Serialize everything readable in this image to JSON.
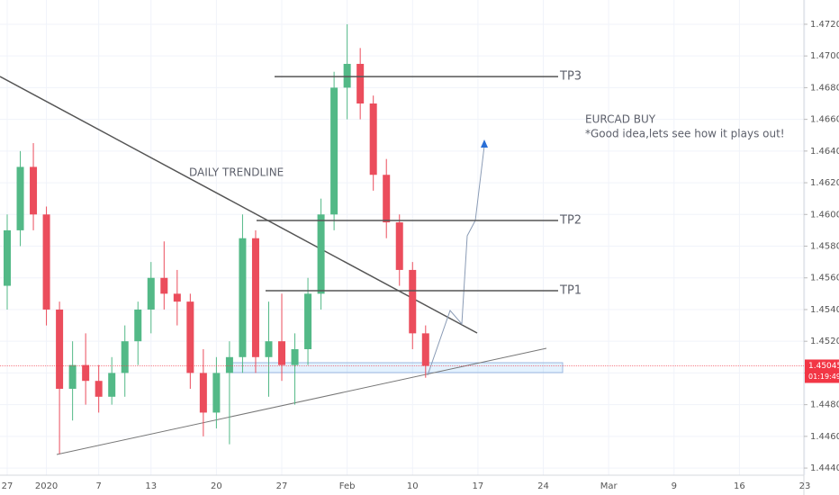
{
  "chart_data": {
    "type": "candlestick",
    "up_color": "#53b987",
    "down_color": "#eb4d5c",
    "categories": [
      "27",
      null,
      null,
      "2020",
      null,
      null,
      null,
      "7",
      null,
      null,
      null,
      "13",
      null,
      null,
      null,
      null,
      "20",
      null,
      null,
      null,
      null,
      "27",
      null,
      null,
      null,
      null,
      "Feb",
      null,
      null,
      null,
      null,
      "10",
      null,
      null,
      null,
      null,
      "17",
      null,
      null,
      null,
      null,
      "24",
      null,
      null,
      null,
      null,
      "Mar",
      null,
      null,
      null,
      null,
      "9",
      null,
      null,
      null,
      null,
      "16",
      null,
      null,
      null,
      null,
      "23"
    ],
    "values": [
      [
        1.4555,
        1.46,
        1.454,
        1.459
      ],
      [
        1.459,
        1.464,
        1.458,
        1.463
      ],
      [
        1.463,
        1.4645,
        1.459,
        1.46
      ],
      [
        1.46,
        1.4605,
        1.453,
        1.454
      ],
      [
        1.454,
        1.4545,
        1.4449,
        1.449
      ],
      [
        1.449,
        1.452,
        1.447,
        1.4505
      ],
      [
        1.4505,
        1.4525,
        1.448,
        1.4495
      ],
      [
        1.4495,
        1.4505,
        1.4475,
        1.4485
      ],
      [
        1.4485,
        1.451,
        1.448,
        1.45
      ],
      [
        1.45,
        1.453,
        1.4485,
        1.452
      ],
      [
        1.452,
        1.4545,
        1.4505,
        1.454
      ],
      [
        1.454,
        1.457,
        1.4525,
        1.456
      ],
      [
        1.456,
        1.4583,
        1.454,
        1.455
      ],
      [
        1.455,
        1.4565,
        1.453,
        1.4545
      ],
      [
        1.4545,
        1.455,
        1.449,
        1.45
      ],
      [
        1.45,
        1.4515,
        1.446,
        1.4475
      ],
      [
        1.4475,
        1.451,
        1.4465,
        1.45
      ],
      [
        1.45,
        1.452,
        1.4455,
        1.451
      ],
      [
        1.451,
        1.46,
        1.45,
        1.4585
      ],
      [
        1.4585,
        1.459,
        1.45,
        1.451
      ],
      [
        1.451,
        1.4545,
        1.4485,
        1.452
      ],
      [
        1.452,
        1.455,
        1.4495,
        1.4505
      ],
      [
        1.4505,
        1.4525,
        1.448,
        1.4515
      ],
      [
        1.4515,
        1.456,
        1.4505,
        1.455
      ],
      [
        1.455,
        1.461,
        1.454,
        1.46
      ],
      [
        1.46,
        1.469,
        1.459,
        1.468
      ],
      [
        1.468,
        1.472,
        1.466,
        1.4695
      ],
      [
        1.4695,
        1.4705,
        1.466,
        1.467
      ],
      [
        1.467,
        1.4675,
        1.4615,
        1.4625
      ],
      [
        1.4625,
        1.4635,
        1.4585,
        1.4595
      ],
      [
        1.4595,
        1.46,
        1.4555,
        1.4565
      ],
      [
        1.4565,
        1.457,
        1.4515,
        1.4525
      ],
      [
        1.4525,
        1.453,
        1.4497,
        1.45045
      ],
      null,
      null,
      null,
      null,
      null,
      null,
      null,
      null,
      null,
      null,
      null,
      null,
      null,
      null,
      null,
      null,
      null,
      null,
      null,
      null,
      null,
      null,
      null,
      null,
      null,
      null,
      null,
      null,
      null
    ],
    "ylim": [
      1.44355,
      1.47353
    ],
    "yticks": [
      {
        "value": 1.444,
        "label": "1.44400"
      },
      {
        "value": 1.446,
        "label": "1.44600"
      },
      {
        "value": 1.448,
        "label": "1.44800"
      },
      {
        "value": 1.45,
        "label": "1.45000"
      },
      {
        "value": 1.452,
        "label": "1.45200"
      },
      {
        "value": 1.454,
        "label": "1.45400"
      },
      {
        "value": 1.456,
        "label": "1.45600"
      },
      {
        "value": 1.458,
        "label": "1.45800"
      },
      {
        "value": 1.46,
        "label": "1.46000"
      },
      {
        "value": 1.462,
        "label": "1.46200"
      },
      {
        "value": 1.464,
        "label": "1.46400"
      },
      {
        "value": 1.466,
        "label": "1.46600"
      },
      {
        "value": 1.468,
        "label": "1.46800"
      },
      {
        "value": 1.47,
        "label": "1.47000"
      },
      {
        "value": 1.472,
        "label": "1.47200"
      }
    ],
    "grid": true,
    "levels": [
      {
        "label": "TP3",
        "value": 1.4687
      },
      {
        "label": "TP2",
        "value": 1.45962
      },
      {
        "label": "TP1",
        "value": 1.45519
      }
    ],
    "last_price": 1.45045,
    "last_price_color": "#f23645",
    "countdown": "01:19:49",
    "annotations": [
      "DAILY TRENDLINE",
      "EURCAD BUY",
      "*Good idea,lets see how it plays out!"
    ]
  }
}
